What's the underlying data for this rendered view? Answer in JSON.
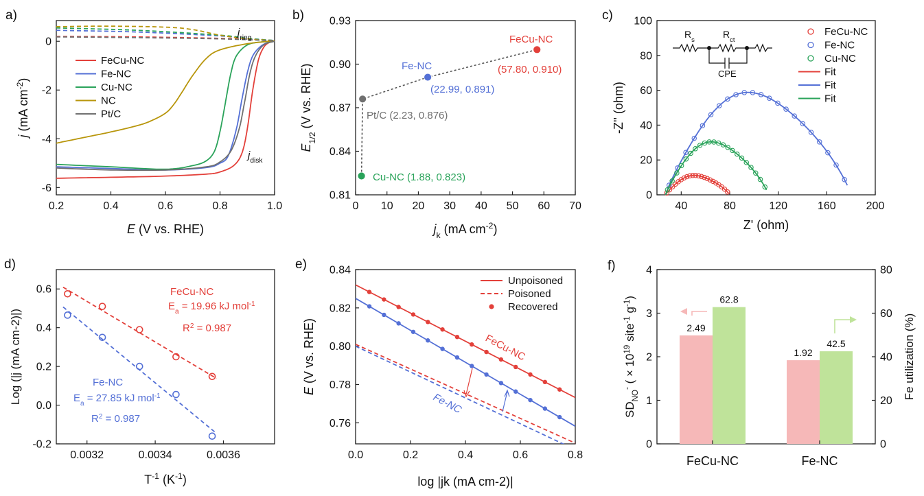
{
  "colors": {
    "red": "#e3403a",
    "blue": "#5470d6",
    "green": "#2aa35a",
    "olive": "#b8960c",
    "gray": "#707070",
    "pink": "#f6b8b8",
    "lightgreen": "#bfe39a"
  },
  "chart_data": [
    {
      "id": "a",
      "panel_label": "a)",
      "type": "line",
      "xlabel_main": "E",
      "xlabel_rest": " (V vs. RHE)",
      "ylabel_main": "j",
      "ylabel_rest": " (mA cm",
      "ylabel_sup": "-2",
      "ylabel_close": ")",
      "xlim": [
        0.2,
        1.0
      ],
      "ylim": [
        -6.3,
        0.85
      ],
      "xticks": [
        0.2,
        0.4,
        0.6,
        0.8,
        1.0
      ],
      "xtick_labels": [
        "0.2",
        "0.4",
        "0.6",
        "0.8",
        "1.0"
      ],
      "yticks": [
        0,
        -2,
        -4,
        -6
      ],
      "ytick_labels": [
        "0",
        "-2",
        "-4",
        "-6"
      ],
      "annotation_ring": "j",
      "annotation_ring_sub": "ring",
      "annotation_disk": "j",
      "annotation_disk_sub": "disk",
      "legend": [
        "FeCu-NC",
        "Fe-NC",
        "Cu-NC",
        "NC",
        "Pt/C"
      ],
      "series": [
        {
          "name": "FeCu-NC",
          "color": "red",
          "disk": [
            [
              0.2,
              -5.62
            ],
            [
              0.4,
              -5.58
            ],
            [
              0.6,
              -5.53
            ],
            [
              0.75,
              -5.45
            ],
            [
              0.8,
              -5.36
            ],
            [
              0.85,
              -5.1
            ],
            [
              0.88,
              -4.6
            ],
            [
              0.9,
              -3.6
            ],
            [
              0.92,
              -2.0
            ],
            [
              0.94,
              -0.8
            ],
            [
              0.96,
              -0.25
            ],
            [
              0.98,
              -0.05
            ],
            [
              1.0,
              0.02
            ]
          ],
          "ring": [
            [
              0.2,
              0.2
            ],
            [
              0.5,
              0.18
            ],
            [
              0.8,
              0.12
            ],
            [
              0.9,
              0.08
            ],
            [
              1.0,
              0.03
            ]
          ]
        },
        {
          "name": "Fe-NC",
          "color": "blue",
          "disk": [
            [
              0.2,
              -5.15
            ],
            [
              0.4,
              -5.22
            ],
            [
              0.6,
              -5.28
            ],
            [
              0.75,
              -5.18
            ],
            [
              0.8,
              -5.0
            ],
            [
              0.83,
              -4.7
            ],
            [
              0.86,
              -3.6
            ],
            [
              0.88,
              -2.4
            ],
            [
              0.9,
              -1.3
            ],
            [
              0.92,
              -0.6
            ],
            [
              0.95,
              -0.2
            ],
            [
              0.98,
              -0.03
            ],
            [
              1.0,
              0.02
            ]
          ],
          "ring": [
            [
              0.2,
              0.45
            ],
            [
              0.5,
              0.38
            ],
            [
              0.8,
              0.22
            ],
            [
              0.9,
              0.12
            ],
            [
              1.0,
              0.03
            ]
          ]
        },
        {
          "name": "Cu-NC",
          "color": "green",
          "disk": [
            [
              0.2,
              -5.05
            ],
            [
              0.4,
              -5.15
            ],
            [
              0.6,
              -5.25
            ],
            [
              0.7,
              -5.1
            ],
            [
              0.75,
              -4.9
            ],
            [
              0.78,
              -4.5
            ],
            [
              0.8,
              -3.7
            ],
            [
              0.82,
              -2.5
            ],
            [
              0.84,
              -1.3
            ],
            [
              0.86,
              -0.6
            ],
            [
              0.9,
              -0.15
            ],
            [
              0.95,
              -0.03
            ],
            [
              1.0,
              0.0
            ]
          ],
          "ring": [
            [
              0.2,
              0.55
            ],
            [
              0.5,
              0.45
            ],
            [
              0.8,
              0.25
            ],
            [
              0.9,
              0.12
            ],
            [
              1.0,
              0.03
            ]
          ]
        },
        {
          "name": "NC",
          "color": "olive",
          "disk": [
            [
              0.2,
              -4.18
            ],
            [
              0.3,
              -3.95
            ],
            [
              0.4,
              -3.72
            ],
            [
              0.5,
              -3.45
            ],
            [
              0.55,
              -3.25
            ],
            [
              0.6,
              -2.95
            ],
            [
              0.63,
              -2.6
            ],
            [
              0.66,
              -2.1
            ],
            [
              0.7,
              -1.4
            ],
            [
              0.75,
              -0.7
            ],
            [
              0.8,
              -0.35
            ],
            [
              0.9,
              -0.1
            ],
            [
              1.0,
              0.02
            ]
          ],
          "ring": [
            [
              0.2,
              0.6
            ],
            [
              0.4,
              0.62
            ],
            [
              0.6,
              0.58
            ],
            [
              0.7,
              0.48
            ],
            [
              0.8,
              0.25
            ],
            [
              0.9,
              0.1
            ],
            [
              1.0,
              0.03
            ]
          ]
        },
        {
          "name": "Pt/C",
          "color": "gray",
          "disk": [
            [
              0.2,
              -5.2
            ],
            [
              0.4,
              -5.28
            ],
            [
              0.6,
              -5.28
            ],
            [
              0.75,
              -5.15
            ],
            [
              0.8,
              -4.95
            ],
            [
              0.84,
              -4.5
            ],
            [
              0.87,
              -3.6
            ],
            [
              0.89,
              -2.5
            ],
            [
              0.91,
              -1.3
            ],
            [
              0.93,
              -0.6
            ],
            [
              0.96,
              -0.15
            ],
            [
              1.0,
              0.0
            ]
          ],
          "ring": [
            [
              0.2,
              0.18
            ],
            [
              0.5,
              0.15
            ],
            [
              0.8,
              0.1
            ],
            [
              1.0,
              0.02
            ]
          ]
        }
      ]
    },
    {
      "id": "b",
      "panel_label": "b)",
      "type": "scatter",
      "xlabel_main": "j",
      "xlabel_sub": "k",
      "xlabel_rest": " (mA cm",
      "xlabel_sup": "-2",
      "xlabel_close": ")",
      "ylabel_main": "E",
      "ylabel_sub": "1/2",
      "ylabel_rest": " (V vs. RHE)",
      "xlim": [
        0,
        70
      ],
      "ylim": [
        0.81,
        0.93
      ],
      "xticks": [
        0,
        10,
        20,
        30,
        40,
        50,
        60,
        70
      ],
      "xtick_labels": [
        "0",
        "10",
        "20",
        "30",
        "40",
        "50",
        "60",
        "70"
      ],
      "yticks": [
        0.81,
        0.84,
        0.87,
        0.9,
        0.93
      ],
      "ytick_labels": [
        "0.81",
        "0.84",
        "0.87",
        "0.90",
        "0.93"
      ],
      "points": [
        {
          "name": "Cu-NC",
          "x": 1.88,
          "y": 0.823,
          "color": "green",
          "label": "Cu-NC (1.88, 0.823)"
        },
        {
          "name": "Pt/C",
          "x": 2.23,
          "y": 0.876,
          "color": "gray",
          "label": "Pt/C (2.23, 0.876)"
        },
        {
          "name": "Fe-NC",
          "x": 22.99,
          "y": 0.891,
          "color": "blue",
          "label": "Fe-NC",
          "label2": "(22.99, 0.891)"
        },
        {
          "name": "FeCu-NC",
          "x": 57.8,
          "y": 0.91,
          "color": "red",
          "label": "FeCu-NC",
          "label2": "(57.80, 0.910)"
        }
      ]
    },
    {
      "id": "c",
      "panel_label": "c)",
      "type": "scatter",
      "xlabel": "Z' (ohm)",
      "ylabel": "-Z'' (ohm)",
      "xlim": [
        20,
        200
      ],
      "ylim": [
        0,
        100
      ],
      "xticks": [
        40,
        80,
        120,
        160,
        200
      ],
      "xtick_labels": [
        "40",
        "80",
        "120",
        "160",
        "200"
      ],
      "yticks": [
        0,
        20,
        40,
        60,
        80,
        100
      ],
      "ytick_labels": [
        "0",
        "20",
        "40",
        "60",
        "80",
        "100"
      ],
      "legend": [
        "FeCu-NC",
        "Fe-NC",
        "Cu-NC",
        "Fit",
        "Fit",
        "Fit"
      ],
      "circuit": {
        "rs": "R",
        "rs_sub": "s",
        "rct": "R",
        "rct_sub": "ct",
        "cpe": "CPE"
      },
      "series": [
        {
          "name": "FeCu-NC",
          "color": "red",
          "rs": 27,
          "rct": 53,
          "peak": 11
        },
        {
          "name": "Fe-NC",
          "color": "blue",
          "rs": 27,
          "rct": 153,
          "peak": 58
        },
        {
          "name": "Cu-NC",
          "color": "green",
          "rs": 27,
          "rct": 85,
          "peak": 30
        }
      ]
    },
    {
      "id": "d",
      "panel_label": "d)",
      "type": "scatter",
      "xlabel_main": "T",
      "xlabel_sup": "-1",
      "xlabel_rest": " (K",
      "xlabel_sup2": "-1",
      "xlabel_close": ")",
      "ylabel": "Log (|j (mA cm-2)|)",
      "xlim": [
        0.00311,
        0.00375
      ],
      "ylim": [
        -0.2,
        0.7
      ],
      "xticks": [
        0.0032,
        0.0034,
        0.0036
      ],
      "xtick_labels": [
        "0.0032",
        "0.0034",
        "0.0036"
      ],
      "yticks": [
        -0.2,
        0.0,
        0.2,
        0.4,
        0.6
      ],
      "ytick_labels": [
        "-0.2",
        "0.0",
        "0.2",
        "0.4",
        "0.6"
      ],
      "series": [
        {
          "name": "FeCu-NC",
          "color": "red",
          "ea": "19.96 kJ mol",
          "r2": " = 0.987",
          "x": [
            0.003143,
            0.003245,
            0.003354,
            0.003461,
            0.003567
          ],
          "y": [
            0.575,
            0.51,
            0.39,
            0.25,
            0.148
          ]
        },
        {
          "name": "Fe-NC",
          "color": "blue",
          "ea": "27.85 kJ mol",
          "r2": " = 0.987",
          "x": [
            0.003143,
            0.003245,
            0.003354,
            0.003461,
            0.003567
          ],
          "y": [
            0.465,
            0.35,
            0.2,
            0.055,
            -0.16
          ]
        }
      ]
    },
    {
      "id": "e",
      "panel_label": "e)",
      "type": "line",
      "xlabel": "log |jk (mA cm-2)|",
      "ylabel_main": "E",
      "ylabel_rest": " (V vs. RHE)",
      "xlim": [
        0.0,
        0.8
      ],
      "ylim": [
        0.749,
        0.84
      ],
      "xticks": [
        0.0,
        0.2,
        0.4,
        0.6,
        0.8
      ],
      "xtick_labels": [
        "0.0",
        "0.2",
        "0.4",
        "0.6",
        "0.8"
      ],
      "yticks": [
        0.76,
        0.78,
        0.8,
        0.82,
        0.84
      ],
      "ytick_labels": [
        "0.76",
        "0.78",
        "0.80",
        "0.82",
        "0.84"
      ],
      "legend": [
        "Unpoisoned",
        "Poisoned",
        "Recovered"
      ],
      "series": [
        {
          "name": "FeCu-NC",
          "color": "red",
          "unpoisoned": [
            0.832,
            -0.0735
          ],
          "poisoned": [
            0.801,
            -0.0645
          ]
        },
        {
          "name": "Fe-NC",
          "color": "blue",
          "unpoisoned": [
            0.825,
            -0.0835
          ],
          "poisoned": [
            0.8,
            -0.0675
          ]
        }
      ]
    },
    {
      "id": "f",
      "panel_label": "f)",
      "type": "bar",
      "categories": [
        "FeCu-NC",
        "Fe-NC"
      ],
      "ylabel_left": "SD",
      "ylabel_left_sub": "NO",
      "ylabel_left_sup": "-",
      "ylabel_left_rest": " ( × 10",
      "ylabel_left_sup2": "19",
      "ylabel_left_rest2": " site",
      "ylabel_left_sup3": "-1",
      "ylabel_left_rest3": " g",
      "ylabel_left_sup4": "-1",
      "ylabel_left_close": ")",
      "ylabel_right": "Fe utilization (%)",
      "ylim_left": [
        0,
        4
      ],
      "ylim_right": [
        0,
        80
      ],
      "yticks_left": [
        0,
        1,
        2,
        3,
        4
      ],
      "ytick_labels_left": [
        "0",
        "1",
        "2",
        "3",
        "4"
      ],
      "yticks_right": [
        0,
        20,
        40,
        60,
        80
      ],
      "ytick_labels_right": [
        "0",
        "20",
        "40",
        "60",
        "80"
      ],
      "series": [
        {
          "name": "SD",
          "axis": "left",
          "color": "pink",
          "values": [
            2.49,
            1.92
          ],
          "labels": [
            "2.49",
            "1.92"
          ]
        },
        {
          "name": "Fe utilization",
          "axis": "right",
          "color": "lightgreen",
          "values": [
            62.8,
            42.5
          ],
          "labels": [
            "62.8",
            "42.5"
          ]
        }
      ]
    }
  ]
}
